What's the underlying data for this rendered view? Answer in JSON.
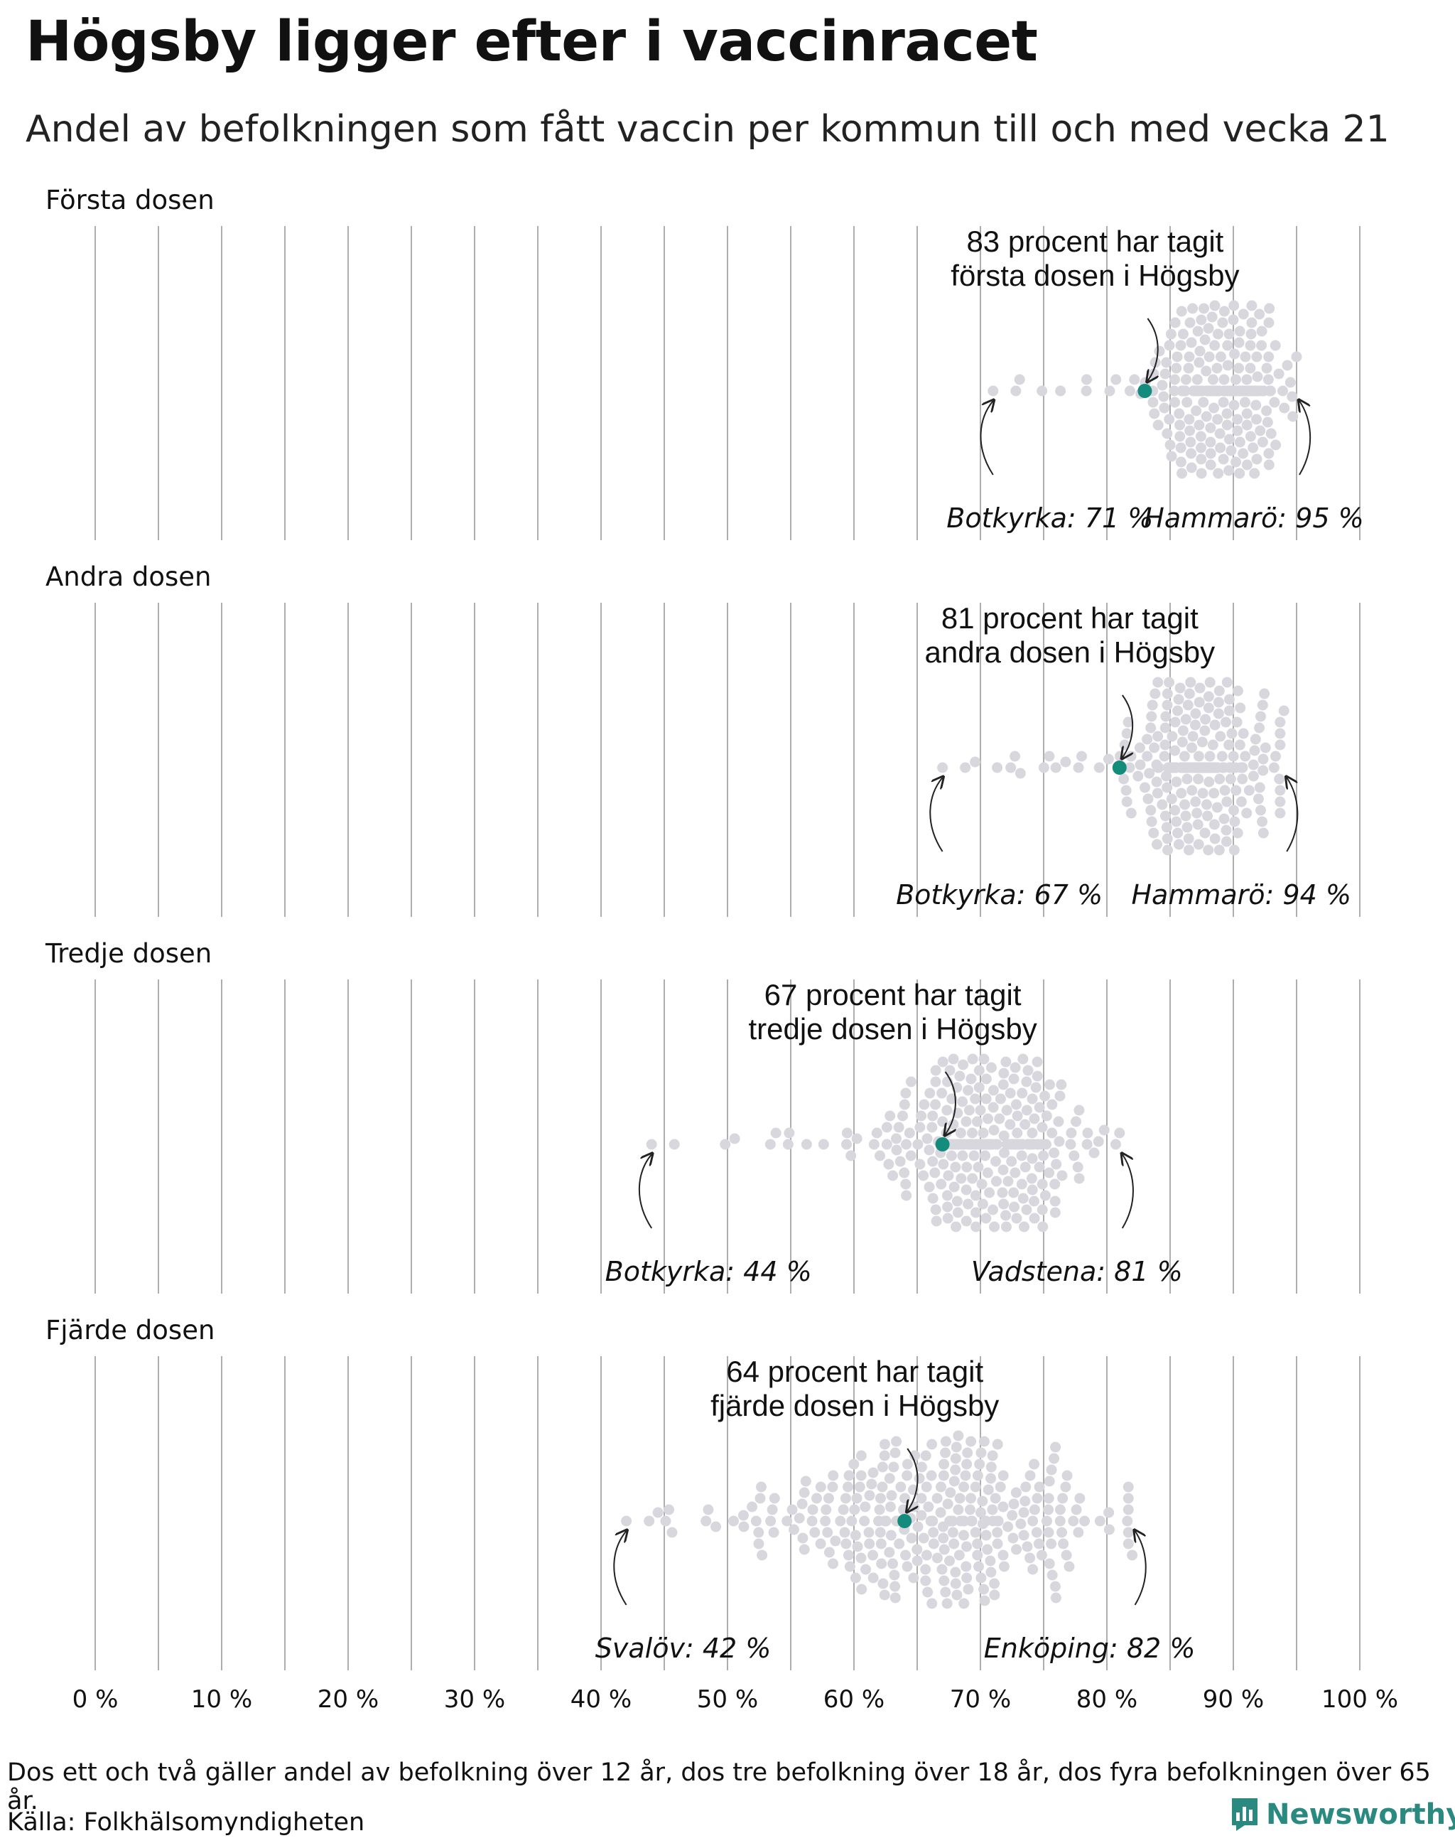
{
  "title": "Högsby ligger efter i vaccinracet",
  "subtitle": "Andel av befolkningen som fått vaccin per kommun till och med vecka 21",
  "footnote": "Dos ett och två gäller andel av befolkning över 12 år, dos tre befolkning över 18 år, dos fyra befolkningen över 65 år.",
  "source": "Källa: Folkhälsomyndigheten",
  "brand": "Newsworthy",
  "colors": {
    "dot": "#d9d7de",
    "highlight": "#138c7e",
    "grid": "#999999",
    "brand": "#2a8a80"
  },
  "chart_data": {
    "type": "scatter",
    "subtype": "beeswarm",
    "x_unit": "%",
    "xlim": [
      0,
      100
    ],
    "x_ticks": [
      "0 %",
      "10 %",
      "20 %",
      "30 %",
      "40 %",
      "50 %",
      "60 %",
      "70 %",
      "80 %",
      "90 %",
      "100 %"
    ],
    "panels": [
      {
        "label": "Första dosen",
        "highlight": {
          "name": "Högsby",
          "value": 83,
          "label_lines": [
            "83 procent har tagit",
            "första dosen i Högsby"
          ]
        },
        "min": {
          "label": "Botkyrka: 71 %",
          "value": 71
        },
        "max": {
          "label": "Hammarö: 95 %",
          "value": 95
        },
        "distribution": {
          "mean": 89,
          "sd": 2.6,
          "count": 290
        }
      },
      {
        "label": "Andra dosen",
        "highlight": {
          "name": "Högsby",
          "value": 81,
          "label_lines": [
            "81 procent har tagit",
            "andra dosen i Högsby"
          ]
        },
        "min": {
          "label": "Botkyrka: 67 %",
          "value": 67
        },
        "max": {
          "label": "Hammarö: 94 %",
          "value": 94
        },
        "distribution": {
          "mean": 87.5,
          "sd": 2.8,
          "count": 290
        }
      },
      {
        "label": "Tredje dosen",
        "highlight": {
          "name": "Högsby",
          "value": 67,
          "label_lines": [
            "67 procent har tagit",
            "tredje dosen i Högsby"
          ]
        },
        "min": {
          "label": "Botkyrka: 44 %",
          "value": 44
        },
        "max": {
          "label": "Vadstena: 81 %",
          "value": 81
        },
        "distribution": {
          "mean": 70,
          "sd": 4.0,
          "count": 290
        }
      },
      {
        "label": "Fjärde dosen",
        "highlight": {
          "name": "Högsby",
          "value": 64,
          "label_lines": [
            "64 procent har tagit",
            "fjärde dosen i Högsby"
          ]
        },
        "min": {
          "label": "Svalöv: 42 %",
          "value": 42
        },
        "max": {
          "label": "Enköping: 82 %",
          "value": 82
        },
        "distribution": {
          "mean": 67,
          "sd": 6.5,
          "count": 290
        }
      }
    ]
  }
}
